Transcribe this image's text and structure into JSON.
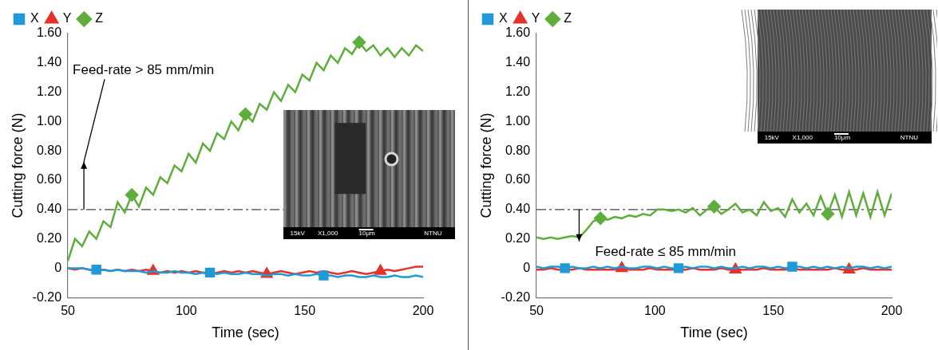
{
  "chart_data": [
    {
      "type": "line",
      "x_label": "Time (sec)",
      "y_label": "Cutting force (N)",
      "x": [
        50,
        53,
        56,
        59,
        62,
        65,
        68,
        71,
        74,
        77,
        80,
        83,
        86,
        89,
        92,
        95,
        98,
        101,
        104,
        107,
        110,
        113,
        116,
        119,
        122,
        125,
        128,
        131,
        134,
        137,
        140,
        143,
        146,
        149,
        152,
        155,
        158,
        161,
        164,
        167,
        170,
        173,
        176,
        179,
        182,
        185,
        188,
        191,
        194,
        197,
        200
      ],
      "series": [
        {
          "name": "X",
          "color": "#1f9ad6",
          "marker": "square",
          "values": [
            0,
            0,
            0,
            -0.01,
            -0.01,
            -0.01,
            -0.02,
            -0.01,
            -0.02,
            -0.02,
            -0.02,
            -0.03,
            -0.02,
            -0.03,
            -0.03,
            -0.02,
            -0.03,
            -0.03,
            -0.04,
            -0.03,
            -0.03,
            -0.04,
            -0.03,
            -0.04,
            -0.04,
            -0.03,
            -0.04,
            -0.04,
            -0.05,
            -0.04,
            -0.04,
            -0.05,
            -0.04,
            -0.05,
            -0.05,
            -0.04,
            -0.05,
            -0.05,
            -0.06,
            -0.05,
            -0.05,
            -0.06,
            -0.06,
            -0.05,
            -0.06,
            -0.06,
            -0.05,
            -0.06,
            -0.06,
            -0.05,
            -0.06
          ]
        },
        {
          "name": "Y",
          "color": "#e5322b",
          "marker": "triangle",
          "values": [
            0,
            -0.01,
            0,
            -0.01,
            -0.02,
            -0.01,
            -0.02,
            -0.01,
            -0.02,
            -0.01,
            -0.02,
            -0.01,
            -0.02,
            -0.03,
            -0.02,
            -0.03,
            -0.02,
            -0.03,
            -0.02,
            -0.03,
            -0.04,
            -0.03,
            -0.02,
            -0.03,
            -0.02,
            -0.03,
            -0.02,
            -0.03,
            -0.04,
            -0.03,
            -0.02,
            -0.03,
            -0.04,
            -0.03,
            -0.02,
            -0.03,
            -0.02,
            -0.03,
            -0.04,
            -0.03,
            -0.02,
            -0.03,
            -0.04,
            -0.03,
            -0.02,
            -0.01,
            -0.02,
            -0.01,
            0,
            0.01,
            0.01
          ]
        },
        {
          "name": "Z",
          "color": "#5fae3c",
          "marker": "diamond",
          "values": [
            0.05,
            0.2,
            0.15,
            0.25,
            0.2,
            0.32,
            0.28,
            0.45,
            0.38,
            0.5,
            0.42,
            0.55,
            0.5,
            0.62,
            0.58,
            0.7,
            0.66,
            0.78,
            0.72,
            0.85,
            0.8,
            0.92,
            0.88,
            1.0,
            0.94,
            1.05,
            1.0,
            1.12,
            1.08,
            1.2,
            1.14,
            1.25,
            1.2,
            1.32,
            1.28,
            1.4,
            1.35,
            1.45,
            1.4,
            1.5,
            1.46,
            1.54,
            1.48,
            1.52,
            1.45,
            1.5,
            1.44,
            1.5,
            1.45,
            1.52,
            1.48
          ]
        }
      ],
      "xlim": [
        50,
        200
      ],
      "xticks": [
        50,
        100,
        150,
        200
      ],
      "ylim": [
        -0.2,
        1.6
      ],
      "yticks": [
        {
          "value": -0.2,
          "label": "-0.20"
        },
        0,
        {
          "value": 0.2,
          "label": "0.20"
        },
        {
          "value": 0.4,
          "label": "0.40"
        },
        {
          "value": 0.6,
          "label": "0.60"
        },
        {
          "value": 0.8,
          "label": "0.80"
        },
        {
          "value": 1.0,
          "label": "1.00"
        },
        {
          "value": 1.2,
          "label": "1.20"
        },
        {
          "value": 1.4,
          "label": "1.40"
        },
        {
          "value": 1.6,
          "label": "1.60"
        }
      ],
      "grid": false,
      "legend": "top left",
      "threshold": 0.4,
      "annotations": [
        {
          "text": "Feed-rate > 85 mm/min",
          "arrow": "up"
        }
      ],
      "inset_text": [
        "15kV",
        "X1,000",
        "10μm",
        "NTNU"
      ]
    },
    {
      "type": "line",
      "x_label": "Time (sec)",
      "y_label": "Cutting force (N)",
      "x": [
        50,
        53,
        56,
        59,
        62,
        65,
        68,
        71,
        74,
        77,
        80,
        83,
        86,
        89,
        92,
        95,
        98,
        101,
        104,
        107,
        110,
        113,
        116,
        119,
        122,
        125,
        128,
        131,
        134,
        137,
        140,
        143,
        146,
        149,
        152,
        155,
        158,
        161,
        164,
        167,
        170,
        173,
        176,
        179,
        182,
        185,
        188,
        191,
        194,
        197,
        200
      ],
      "series": [
        {
          "name": "X",
          "color": "#1f9ad6",
          "marker": "square",
          "values": [
            0.01,
            0,
            0.01,
            0.01,
            0,
            0.01,
            0,
            0,
            0.01,
            0,
            0.01,
            0,
            0.01,
            0,
            0,
            0.01,
            0.01,
            0,
            0.01,
            0,
            0,
            0.01,
            0,
            0.01,
            0.01,
            0,
            0.01,
            0,
            0,
            0.01,
            0,
            0.01,
            0.01,
            0,
            0.01,
            0,
            0.01,
            0.01,
            0,
            0.01,
            0,
            0.01,
            0,
            0.01,
            0,
            0.01,
            0.01,
            0,
            0.01,
            0,
            0.01
          ]
        },
        {
          "name": "Y",
          "color": "#e5322b",
          "marker": "triangle",
          "values": [
            -0.01,
            -0.01,
            0,
            -0.01,
            -0.01,
            -0.01,
            0,
            -0.01,
            -0.01,
            -0.01,
            -0.01,
            -0.01,
            0,
            -0.01,
            -0.01,
            -0.01,
            0,
            -0.01,
            -0.01,
            -0.01,
            -0.01,
            -0.01,
            0,
            -0.01,
            -0.01,
            -0.01,
            0,
            -0.01,
            -0.01,
            -0.01,
            -0.01,
            -0.01,
            0,
            -0.01,
            -0.01,
            -0.01,
            0,
            -0.01,
            -0.01,
            -0.01,
            -0.01,
            -0.01,
            0,
            -0.01,
            -0.01,
            -0.01,
            0,
            -0.01,
            -0.01,
            -0.01,
            -0.01
          ]
        },
        {
          "name": "Z",
          "color": "#5fae3c",
          "marker": "diamond",
          "values": [
            0.21,
            0.2,
            0.21,
            0.2,
            0.21,
            0.22,
            0.21,
            0.26,
            0.32,
            0.34,
            0.33,
            0.35,
            0.34,
            0.36,
            0.35,
            0.37,
            0.36,
            0.4,
            0.4,
            0.39,
            0.4,
            0.38,
            0.41,
            0.36,
            0.4,
            0.42,
            0.37,
            0.4,
            0.44,
            0.38,
            0.4,
            0.36,
            0.45,
            0.39,
            0.41,
            0.35,
            0.47,
            0.38,
            0.44,
            0.36,
            0.49,
            0.37,
            0.5,
            0.35,
            0.52,
            0.36,
            0.51,
            0.35,
            0.52,
            0.36,
            0.51
          ]
        }
      ],
      "xlim": [
        50,
        200
      ],
      "xticks": [
        50,
        100,
        150,
        200
      ],
      "ylim": [
        -0.2,
        1.6
      ],
      "yticks": [
        {
          "value": -0.2,
          "label": "-0.20"
        },
        0,
        {
          "value": 0.2,
          "label": "0.20"
        },
        {
          "value": 0.4,
          "label": "0.40"
        },
        {
          "value": 0.6,
          "label": "0.60"
        },
        {
          "value": 0.8,
          "label": "0.80"
        },
        {
          "value": 1.0,
          "label": "1.00"
        },
        {
          "value": 1.2,
          "label": "1.20"
        },
        {
          "value": 1.4,
          "label": "1.40"
        },
        {
          "value": 1.6,
          "label": "1.60"
        }
      ],
      "grid": false,
      "legend": "top left",
      "threshold": 0.4,
      "annotations": [
        {
          "text": "Feed-rate ≤ 85 mm/min",
          "arrow": "down"
        }
      ],
      "inset_text": [
        "15kV",
        "X1,000",
        "10μm",
        "NTNU"
      ]
    }
  ]
}
